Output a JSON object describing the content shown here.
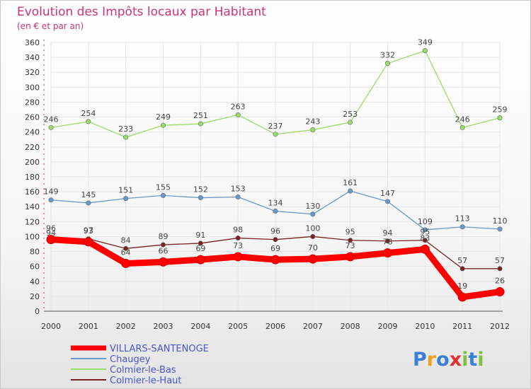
{
  "chart_data": {
    "type": "line",
    "title": "Evolution des Impôts locaux par Habitant",
    "subtitle": "(en € et par an)",
    "xlabel": "",
    "ylabel": "",
    "ylim": [
      0,
      360
    ],
    "ytick_step": 20,
    "grid": true,
    "legend_position": "bottom-left",
    "categories": [
      "2000",
      "2001",
      "2002",
      "2003",
      "2004",
      "2005",
      "2006",
      "2007",
      "2008",
      "2009",
      "2010",
      "2011",
      "2012"
    ],
    "series": [
      {
        "name": "VILLARS-SANTENOGE",
        "color": "#ff0000",
        "values": [
          96,
          93,
          64,
          66,
          69,
          73,
          69,
          70,
          73,
          78,
          83,
          19,
          26
        ]
      },
      {
        "name": "Chaugey",
        "color": "#6699cc",
        "values": [
          149,
          145,
          151,
          155,
          152,
          153,
          134,
          130,
          161,
          147,
          109,
          113,
          110
        ]
      },
      {
        "name": "Colmier-le-Bas",
        "color": "#99dd66",
        "values": [
          246,
          254,
          233,
          249,
          251,
          263,
          237,
          243,
          253,
          332,
          349,
          246,
          259
        ]
      },
      {
        "name": "Colmier-le-Haut",
        "color": "#7a2222",
        "values": [
          94,
          97,
          84,
          89,
          91,
          98,
          96,
          100,
          95,
          94,
          95,
          57,
          57
        ]
      }
    ]
  },
  "brand": {
    "name": "Proxiti",
    "letters": [
      "P",
      "r",
      "o",
      "x",
      "i",
      "t",
      "i"
    ]
  },
  "colors": {
    "title": "#cc3377",
    "legend_text": "#4a55c8",
    "grid": "#e6e6e6",
    "axis_dash": "#cc3377"
  }
}
